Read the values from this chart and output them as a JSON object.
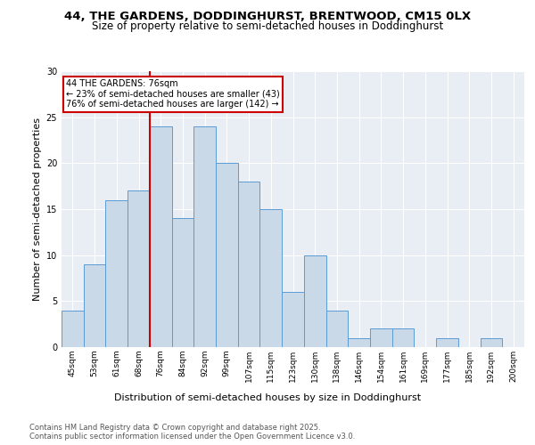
{
  "title1": "44, THE GARDENS, DODDINGHURST, BRENTWOOD, CM15 0LX",
  "title2": "Size of property relative to semi-detached houses in Doddinghurst",
  "xlabel": "Distribution of semi-detached houses by size in Doddinghurst",
  "ylabel": "Number of semi-detached properties",
  "categories": [
    "45sqm",
    "53sqm",
    "61sqm",
    "68sqm",
    "76sqm",
    "84sqm",
    "92sqm",
    "99sqm",
    "107sqm",
    "115sqm",
    "123sqm",
    "130sqm",
    "138sqm",
    "146sqm",
    "154sqm",
    "161sqm",
    "169sqm",
    "177sqm",
    "185sqm",
    "192sqm",
    "200sqm"
  ],
  "values": [
    4,
    9,
    16,
    17,
    24,
    14,
    24,
    20,
    18,
    15,
    6,
    10,
    4,
    1,
    2,
    2,
    0,
    1,
    0,
    1,
    0
  ],
  "bar_color": "#c9d9e8",
  "bar_edge_color": "#5b9bd5",
  "vline_index": 4,
  "vline_color": "#cc0000",
  "annotation_title": "44 THE GARDENS: 76sqm",
  "annotation_line1": "← 23% of semi-detached houses are smaller (43)",
  "annotation_line2": "76% of semi-detached houses are larger (142) →",
  "annotation_box_color": "#cc0000",
  "ylim": [
    0,
    30
  ],
  "yticks": [
    0,
    5,
    10,
    15,
    20,
    25,
    30
  ],
  "footer1": "Contains HM Land Registry data © Crown copyright and database right 2025.",
  "footer2": "Contains public sector information licensed under the Open Government Licence v3.0.",
  "bg_color": "#e8eef4",
  "title1_fontsize": 9.5,
  "title2_fontsize": 8.5,
  "tick_fontsize": 6.5,
  "ylabel_fontsize": 8,
  "xlabel_fontsize": 8,
  "annotation_fontsize": 7,
  "footer_fontsize": 6
}
